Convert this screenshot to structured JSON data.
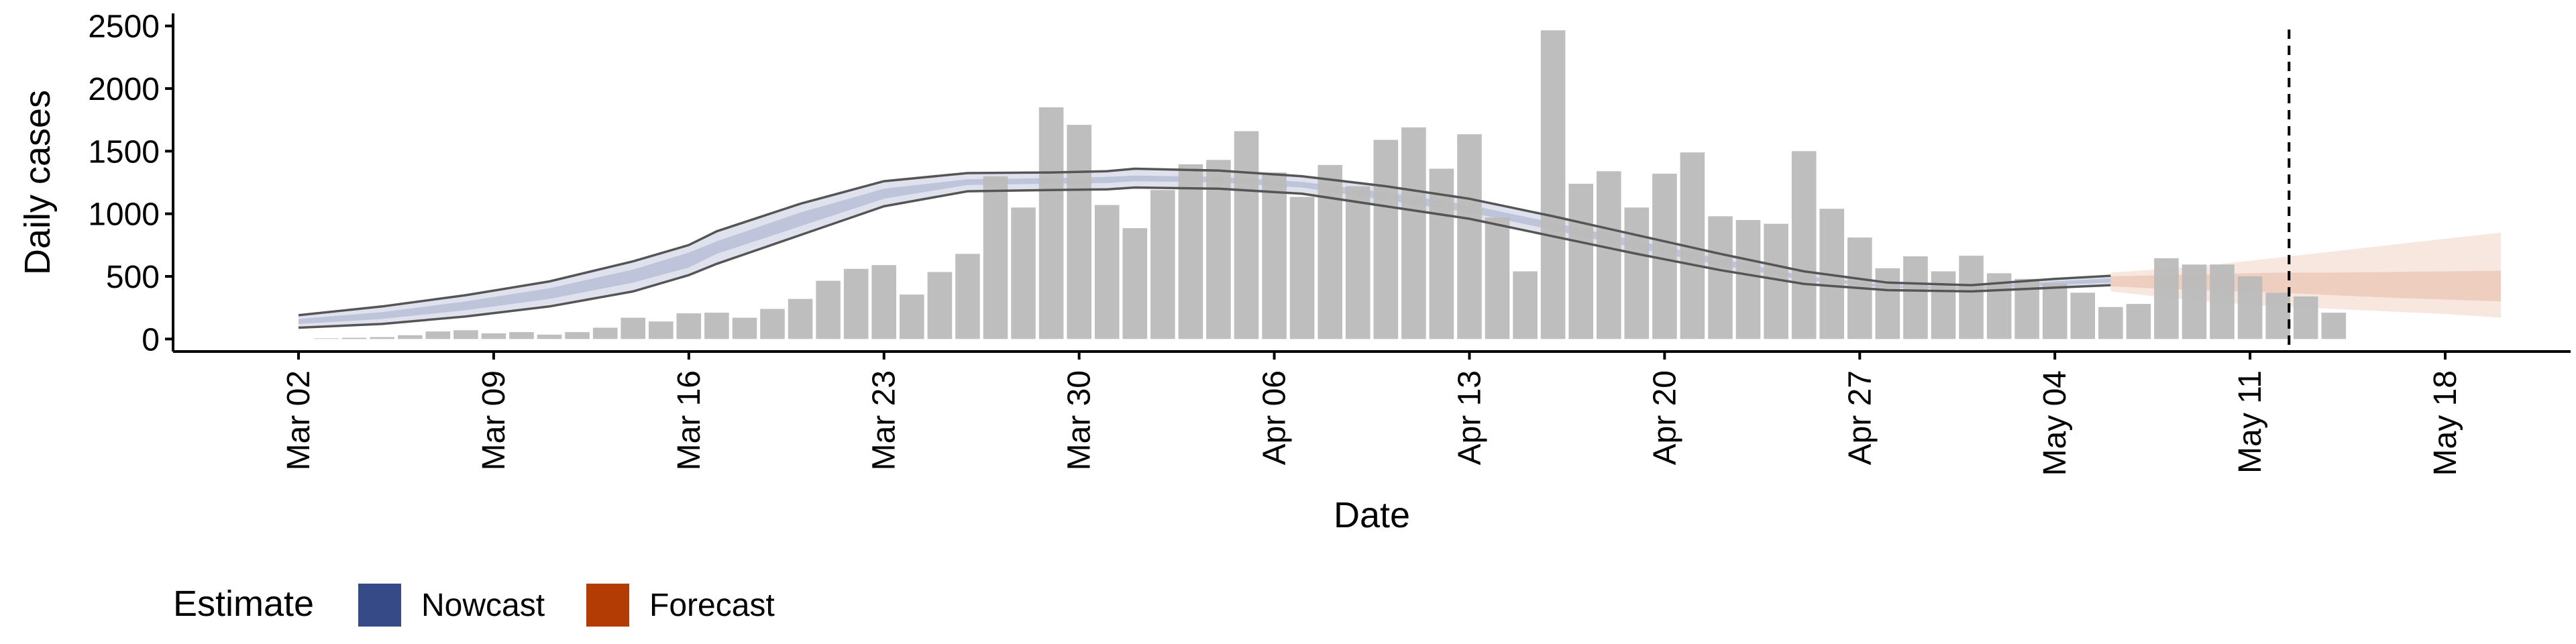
{
  "chart_data": {
    "type": "bar",
    "xlabel": "Date",
    "ylabel": "Daily cases",
    "ylim": [
      -100,
      2600
    ],
    "y_ticks": [
      0,
      500,
      1000,
      1500,
      2000,
      2500
    ],
    "x_ticks": [
      {
        "label": "Mar 02",
        "day": 1
      },
      {
        "label": "Mar 09",
        "day": 8
      },
      {
        "label": "Mar 16",
        "day": 15
      },
      {
        "label": "Mar 23",
        "day": 22
      },
      {
        "label": "Mar 30",
        "day": 29
      },
      {
        "label": "Apr 06",
        "day": 36
      },
      {
        "label": "Apr 13",
        "day": 43
      },
      {
        "label": "Apr 20",
        "day": 50
      },
      {
        "label": "Apr 27",
        "day": 57
      },
      {
        "label": "May 04",
        "day": 64
      },
      {
        "label": "May 11",
        "day": 71
      },
      {
        "label": "May 18",
        "day": 78
      }
    ],
    "xlim": [
      -3.5,
      82.5
    ],
    "reference_line_day": 72.4,
    "daily_cases": [
      {
        "day": 2,
        "value": 5
      },
      {
        "day": 3,
        "value": 10
      },
      {
        "day": 4,
        "value": 15
      },
      {
        "day": 5,
        "value": 30
      },
      {
        "day": 6,
        "value": 60
      },
      {
        "day": 7,
        "value": 70
      },
      {
        "day": 8,
        "value": 45
      },
      {
        "day": 9,
        "value": 55
      },
      {
        "day": 10,
        "value": 35
      },
      {
        "day": 11,
        "value": 55
      },
      {
        "day": 12,
        "value": 90
      },
      {
        "day": 13,
        "value": 170
      },
      {
        "day": 14,
        "value": 140
      },
      {
        "day": 15,
        "value": 205
      },
      {
        "day": 16,
        "value": 210
      },
      {
        "day": 17,
        "value": 170
      },
      {
        "day": 18,
        "value": 240
      },
      {
        "day": 19,
        "value": 320
      },
      {
        "day": 20,
        "value": 465
      },
      {
        "day": 21,
        "value": 560
      },
      {
        "day": 22,
        "value": 590
      },
      {
        "day": 23,
        "value": 355
      },
      {
        "day": 24,
        "value": 535
      },
      {
        "day": 25,
        "value": 680
      },
      {
        "day": 26,
        "value": 1300
      },
      {
        "day": 27,
        "value": 1050
      },
      {
        "day": 28,
        "value": 1850
      },
      {
        "day": 29,
        "value": 1710
      },
      {
        "day": 30,
        "value": 1070
      },
      {
        "day": 31,
        "value": 885
      },
      {
        "day": 32,
        "value": 1190
      },
      {
        "day": 33,
        "value": 1395
      },
      {
        "day": 34,
        "value": 1430
      },
      {
        "day": 35,
        "value": 1660
      },
      {
        "day": 36,
        "value": 1330
      },
      {
        "day": 37,
        "value": 1135
      },
      {
        "day": 38,
        "value": 1390
      },
      {
        "day": 39,
        "value": 1220
      },
      {
        "day": 40,
        "value": 1590
      },
      {
        "day": 41,
        "value": 1690
      },
      {
        "day": 42,
        "value": 1360
      },
      {
        "day": 43,
        "value": 1635
      },
      {
        "day": 44,
        "value": 970
      },
      {
        "day": 45,
        "value": 540
      },
      {
        "day": 46,
        "value": 2465
      },
      {
        "day": 47,
        "value": 1240
      },
      {
        "day": 48,
        "value": 1340
      },
      {
        "day": 49,
        "value": 1050
      },
      {
        "day": 50,
        "value": 1320
      },
      {
        "day": 51,
        "value": 1490
      },
      {
        "day": 52,
        "value": 980
      },
      {
        "day": 53,
        "value": 950
      },
      {
        "day": 54,
        "value": 920
      },
      {
        "day": 55,
        "value": 1500
      },
      {
        "day": 56,
        "value": 1040
      },
      {
        "day": 57,
        "value": 810
      },
      {
        "day": 58,
        "value": 565
      },
      {
        "day": 59,
        "value": 660
      },
      {
        "day": 60,
        "value": 540
      },
      {
        "day": 61,
        "value": 665
      },
      {
        "day": 62,
        "value": 525
      },
      {
        "day": 63,
        "value": 480
      },
      {
        "day": 64,
        "value": 445
      },
      {
        "day": 65,
        "value": 370
      },
      {
        "day": 66,
        "value": 255
      },
      {
        "day": 67,
        "value": 280
      },
      {
        "day": 68,
        "value": 645
      },
      {
        "day": 69,
        "value": 595
      },
      {
        "day": 70,
        "value": 595
      },
      {
        "day": 71,
        "value": 500
      },
      {
        "day": 72,
        "value": 370
      },
      {
        "day": 73,
        "value": 340
      },
      {
        "day": 74,
        "value": 210
      }
    ],
    "nowcast": {
      "days": [
        1,
        4,
        7,
        10,
        13,
        15,
        16,
        19,
        22,
        25,
        28,
        30,
        31,
        34,
        37,
        40,
        43,
        46,
        49,
        52,
        55,
        58,
        61,
        64,
        66
      ],
      "outer_upper": [
        190,
        260,
        350,
        460,
        620,
        750,
        860,
        1080,
        1260,
        1325,
        1330,
        1340,
        1360,
        1345,
        1300,
        1220,
        1120,
        980,
        830,
        680,
        540,
        450,
        430,
        480,
        505
      ],
      "outer_lower": [
        90,
        120,
        180,
        260,
        380,
        510,
        600,
        830,
        1060,
        1180,
        1190,
        1195,
        1210,
        1200,
        1160,
        1060,
        960,
        820,
        680,
        550,
        440,
        390,
        380,
        410,
        430
      ],
      "inner_upper": [
        160,
        215,
        300,
        405,
        555,
        690,
        780,
        1010,
        1200,
        1275,
        1285,
        1295,
        1305,
        1295,
        1255,
        1170,
        1070,
        930,
        785,
        640,
        505,
        430,
        415,
        460,
        485
      ],
      "inner_lower": [
        120,
        160,
        230,
        320,
        450,
        570,
        680,
        900,
        1120,
        1230,
        1240,
        1245,
        1260,
        1250,
        1210,
        1110,
        1010,
        870,
        725,
        590,
        470,
        410,
        395,
        430,
        450
      ]
    },
    "forecast": {
      "days": [
        66,
        68,
        70,
        72,
        74,
        76,
        78,
        80
      ],
      "outer_upper": [
        530,
        560,
        600,
        650,
        700,
        750,
        800,
        850
      ],
      "outer_lower": [
        380,
        330,
        290,
        260,
        240,
        220,
        200,
        170
      ],
      "inner_upper": [
        500,
        510,
        520,
        530,
        530,
        535,
        540,
        545
      ],
      "inner_lower": [
        420,
        400,
        385,
        370,
        350,
        330,
        315,
        300
      ]
    },
    "legend": {
      "title": "Estimate",
      "items": [
        {
          "label": "Nowcast",
          "color": "#354A87"
        },
        {
          "label": "Forecast",
          "color": "#B33C05"
        }
      ],
      "position": "bottom-left"
    },
    "colors": {
      "bar": "#BABABA",
      "nowcast_band": "#A3ADCC",
      "forecast_band": "#E7B9A2",
      "outline": "#555555"
    }
  }
}
